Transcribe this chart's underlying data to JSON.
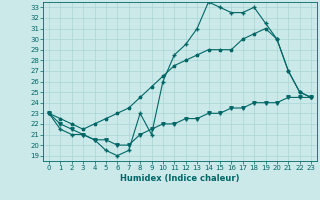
{
  "xlabel": "Humidex (Indice chaleur)",
  "xlim": [
    -0.5,
    23.5
  ],
  "ylim": [
    18.5,
    33.5
  ],
  "yticks": [
    19,
    20,
    21,
    22,
    23,
    24,
    25,
    26,
    27,
    28,
    29,
    30,
    31,
    32,
    33
  ],
  "xticks": [
    0,
    1,
    2,
    3,
    4,
    5,
    6,
    7,
    8,
    9,
    10,
    11,
    12,
    13,
    14,
    15,
    16,
    17,
    18,
    19,
    20,
    21,
    22,
    23
  ],
  "bg_color": "#cce9e9",
  "line_color": "#006666",
  "grid_color": "#aad6d6",
  "line1_y": [
    23,
    21.5,
    21,
    21,
    20.5,
    19.5,
    19,
    19.5,
    23,
    21,
    26,
    28.5,
    29.5,
    31,
    33.5,
    33,
    32.5,
    32.5,
    33,
    31.5,
    30,
    27,
    25,
    24.5
  ],
  "line2_y": [
    23,
    22.5,
    22,
    21.5,
    22,
    22.5,
    23,
    23.5,
    24.5,
    25.5,
    26.5,
    27.5,
    28,
    28.5,
    29,
    29,
    29,
    30,
    30.5,
    31,
    30,
    27,
    25,
    24.5
  ],
  "line3_y": [
    23,
    22,
    21.5,
    21,
    20.5,
    20.5,
    20,
    20,
    21,
    21.5,
    22,
    22,
    22.5,
    22.5,
    23,
    23,
    23.5,
    23.5,
    24,
    24,
    24,
    24.5,
    24.5,
    24.5
  ],
  "marker1": "+",
  "marker2": "*",
  "marker3": "v"
}
